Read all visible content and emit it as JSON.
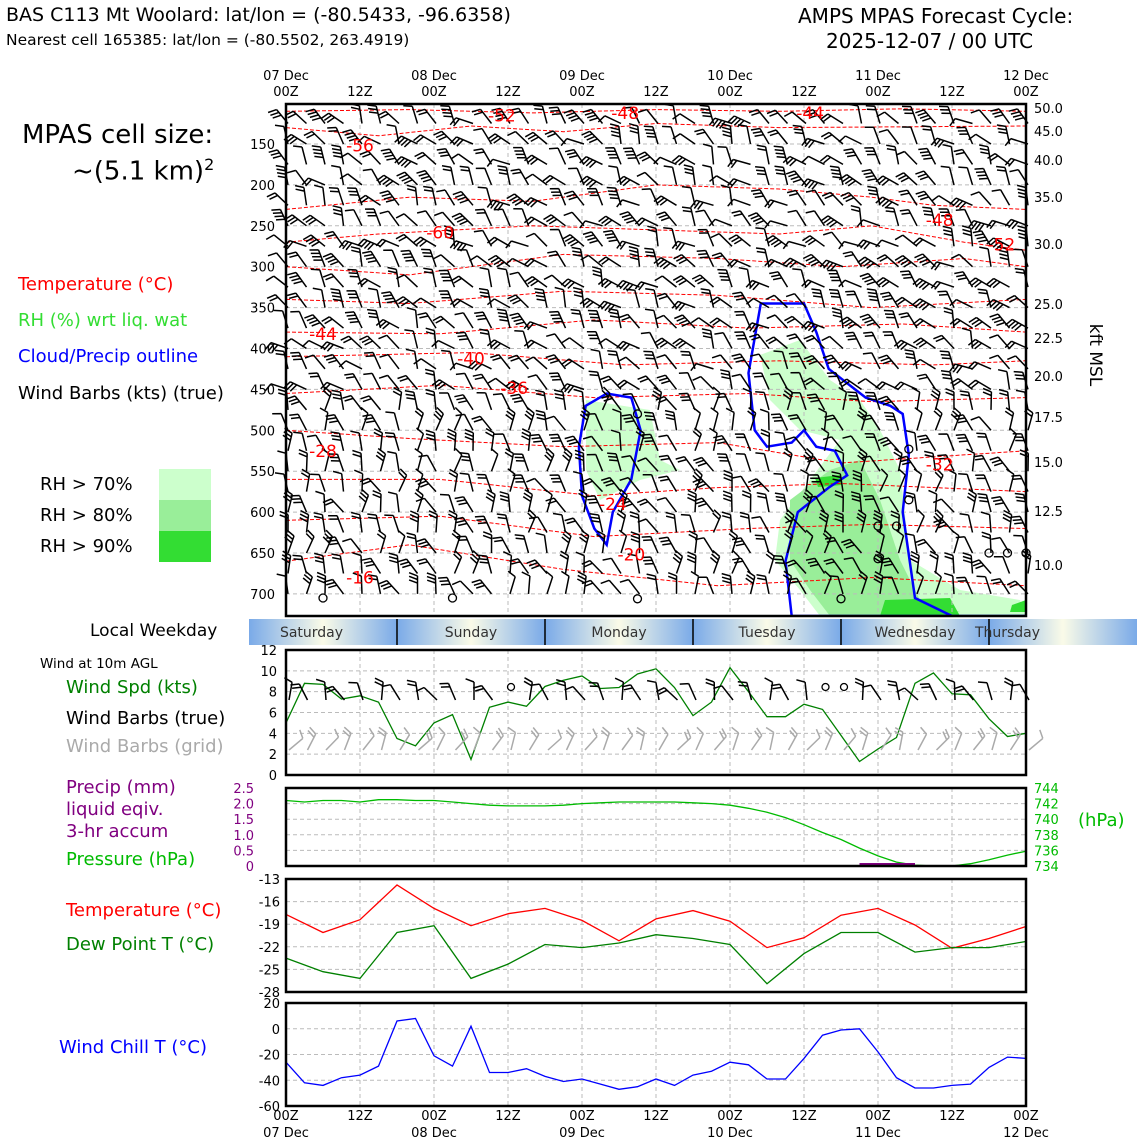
{
  "header": {
    "station_title": "BAS C113 Mt Woolard: lat/lon = (-80.5433, -96.6358)",
    "nearest_cell": "Nearest cell 165385: lat/lon = (-80.5502, 263.4919)",
    "forecast_title": "AMPS MPAS Forecast Cycle:",
    "forecast_cycle": "2025-12-07 / 00 UTC"
  },
  "left_legend": {
    "cell_size_title": "MPAS cell size:",
    "cell_size_value": "~(5.1 km)",
    "cell_size_exp": "2",
    "temperature": "Temperature (°C)",
    "rh": "RH (%) wrt liq. wat",
    "cloud": "Cloud/Precip outline",
    "barbs": "Wind Barbs (kts) (true)",
    "rh70": "RH > 70%",
    "rh80": "RH > 80%",
    "rh90": "RH > 90%",
    "local_weekday": "Local Weekday",
    "wind_10m": "Wind at 10m AGL",
    "wind_spd": "Wind Spd (kts)",
    "wind_barbs_true": "Wind Barbs (true)",
    "wind_barbs_grid": "Wind Barbs (grid)",
    "precip1": "Precip (mm)",
    "precip2": "liquid eqiv.",
    "precip3": "3-hr accum",
    "pressure": "Pressure (hPa)",
    "temp2": "Temperature (°C)",
    "dewpoint": "Dew Point T (°C)",
    "windchill": "Wind Chill T (°C)"
  },
  "colors": {
    "temperature": "#ff0000",
    "rh_label": "#33dd33",
    "cloud": "#0000ff",
    "wind_spd": "#008000",
    "precip": "#800080",
    "pressure": "#00bb00",
    "dewpoint": "#008000",
    "windchill": "#0000ff",
    "grid_barb": "#aaaaaa",
    "rh70": "#ccffcc",
    "rh80": "#99ee99",
    "rh90": "#33dd33"
  },
  "time_axis": {
    "date_ticks": [
      {
        "date": "07 Dec",
        "hour": "00Z"
      },
      {
        "date": "08 Dec",
        "hour": "00Z"
      },
      {
        "date": "09 Dec",
        "hour": "00Z"
      },
      {
        "date": "10 Dec",
        "hour": "00Z"
      },
      {
        "date": "11 Dec",
        "hour": "00Z"
      },
      {
        "date": "12 Dec",
        "hour": "00Z"
      }
    ],
    "mid_label": "12Z",
    "weekdays": [
      "Saturday",
      "Sunday",
      "Monday",
      "Tuesday",
      "Wednesday",
      "Thursday"
    ]
  },
  "chart_data": [
    {
      "type": "heatmap",
      "name": "time-height cross section",
      "x_range_hours": [
        0,
        120
      ],
      "y_label_right": "kft MSL",
      "pressure_ticks": [
        "150",
        "200",
        "250",
        "300",
        "350",
        "400",
        "450",
        "500",
        "550",
        "600",
        "650",
        "700"
      ],
      "height_ticks": [
        "50.0",
        "45.0",
        "40.0",
        "35.0",
        "30.0",
        "25.0",
        "22.5",
        "20.0",
        "17.5",
        "15.0",
        "12.5",
        "10.0"
      ],
      "temperature_labels": [
        {
          "text": "-52",
          "hour": 35,
          "hPa": 115
        },
        {
          "text": "-48",
          "hour": 55,
          "hPa": 112
        },
        {
          "text": "-44",
          "hour": 85,
          "hPa": 112
        },
        {
          "text": "-56",
          "hour": 12,
          "hPa": 152
        },
        {
          "text": "-60",
          "hour": 25,
          "hPa": 258
        },
        {
          "text": "-48",
          "hour": 106,
          "hPa": 243
        },
        {
          "text": "-52",
          "hour": 116,
          "hPa": 273
        },
        {
          "text": "-44",
          "hour": 6,
          "hPa": 382
        },
        {
          "text": "-40",
          "hour": 30,
          "hPa": 412
        },
        {
          "text": "-36",
          "hour": 37,
          "hPa": 448
        },
        {
          "text": "-28",
          "hour": 6,
          "hPa": 525
        },
        {
          "text": "-32",
          "hour": 106,
          "hPa": 542
        },
        {
          "text": "-24",
          "hour": 53,
          "hPa": 590
        },
        {
          "text": "-20",
          "hour": 56,
          "hPa": 652
        },
        {
          "text": "-16",
          "hour": 12,
          "hPa": 680
        }
      ]
    },
    {
      "type": "line",
      "name": "wind speed 10m",
      "ylim": [
        0,
        12
      ],
      "yticks": [
        "0",
        "2",
        "4",
        "6",
        "8",
        "10",
        "12"
      ],
      "x": [
        0,
        3,
        6,
        9,
        12,
        15,
        18,
        21,
        24,
        27,
        30,
        33,
        36,
        39,
        42,
        45,
        48,
        51,
        54,
        57,
        60,
        63,
        66,
        69,
        72,
        75,
        78,
        81,
        84,
        87,
        90,
        93,
        96,
        99,
        102,
        105,
        108,
        111,
        114,
        117,
        120
      ],
      "values": [
        5,
        8.8,
        8.7,
        7.3,
        7.6,
        7,
        3.5,
        2.8,
        5,
        5.8,
        1.5,
        6.5,
        7,
        6.6,
        8.5,
        9.1,
        9.5,
        8.3,
        8.4,
        9.7,
        10.2,
        8.4,
        5.7,
        7,
        10.3,
        8,
        5.6,
        5.6,
        6.8,
        6.3,
        3.8,
        1.3,
        2.5,
        3.6,
        8.8,
        9.8,
        7.8,
        7.7,
        5.4,
        3.7,
        4
      ]
    },
    {
      "type": "line",
      "name": "pressure",
      "left_ylim": [
        0,
        2.5
      ],
      "left_yticks": [
        "0",
        "0.5",
        "1.0",
        "1.5",
        "2.0",
        "2.5"
      ],
      "right_ylim": [
        734,
        744
      ],
      "right_yticks": [
        "734",
        "736",
        "738",
        "740",
        "742",
        "744"
      ],
      "right_label": "(hPa)",
      "x": [
        0,
        3,
        6,
        9,
        12,
        15,
        18,
        21,
        24,
        27,
        30,
        33,
        36,
        39,
        42,
        45,
        48,
        51,
        54,
        57,
        60,
        63,
        66,
        69,
        72,
        75,
        78,
        81,
        84,
        87,
        90,
        93,
        96,
        99,
        102,
        105,
        108,
        111,
        114,
        117,
        120
      ],
      "values": [
        742.4,
        742.2,
        742.4,
        742.4,
        742.2,
        742.5,
        742.5,
        742.4,
        742.4,
        742.2,
        742,
        741.8,
        741.7,
        741.7,
        741.7,
        741.8,
        742,
        742.1,
        742.2,
        742.2,
        742.2,
        742.2,
        742.1,
        742,
        741.8,
        741.4,
        740.9,
        740.2,
        739.3,
        738.3,
        737.4,
        736.3,
        735.3,
        734.5,
        734.1,
        734,
        734,
        734.3,
        734.8,
        735.4,
        735.9
      ]
    },
    {
      "type": "line",
      "name": "temperature and dew point",
      "ylim": [
        -28,
        -13
      ],
      "yticks": [
        "-13",
        "-16",
        "-19",
        "-22",
        "-25",
        "-28"
      ],
      "x": [
        0,
        6,
        12,
        18,
        24,
        30,
        36,
        42,
        48,
        54,
        60,
        66,
        72,
        78,
        84,
        90,
        96,
        102,
        108,
        114,
        120
      ],
      "series": [
        {
          "key": "temperature",
          "values": [
            -17.7,
            -20.1,
            -18.4,
            -13.8,
            -16.9,
            -19.2,
            -17.6,
            -16.9,
            -18.5,
            -21.2,
            -18.3,
            -17.2,
            -18.6,
            -22.1,
            -20.8,
            -17.8,
            -16.9,
            -19.1,
            -22.2,
            -20.9,
            -19.3
          ]
        },
        {
          "key": "dewpoint",
          "values": [
            -23.5,
            -25.3,
            -26.2,
            -20.1,
            -19.2,
            -26.2,
            -24.3,
            -21.7,
            -22.1,
            -21.5,
            -20.4,
            -20.9,
            -21.7,
            -26.9,
            -22.9,
            -20.1,
            -20.1,
            -22.7,
            -22.1,
            -22.1,
            -21.3
          ]
        }
      ]
    },
    {
      "type": "line",
      "name": "wind chill",
      "ylim": [
        -60,
        20
      ],
      "yticks": [
        "20",
        "0",
        "-20",
        "-40",
        "-60"
      ],
      "x": [
        0,
        3,
        6,
        9,
        12,
        15,
        18,
        21,
        24,
        27,
        30,
        33,
        36,
        39,
        42,
        45,
        48,
        51,
        54,
        57,
        60,
        63,
        66,
        69,
        72,
        75,
        78,
        81,
        84,
        87,
        90,
        93,
        96,
        99,
        102,
        105,
        108,
        111,
        114,
        117,
        120
      ],
      "values": [
        -26,
        -42,
        -44,
        -38,
        -36,
        -29,
        6,
        8,
        -21,
        -29,
        2,
        -34,
        -34,
        -31,
        -37,
        -41,
        -39,
        -43,
        -47,
        -45,
        -39,
        -44,
        -36,
        -33,
        -26,
        -28,
        -39,
        -39,
        -23,
        -5,
        -1,
        0,
        -18,
        -38,
        -46,
        -46,
        -44,
        -43,
        -30,
        -22,
        -23
      ]
    }
  ]
}
